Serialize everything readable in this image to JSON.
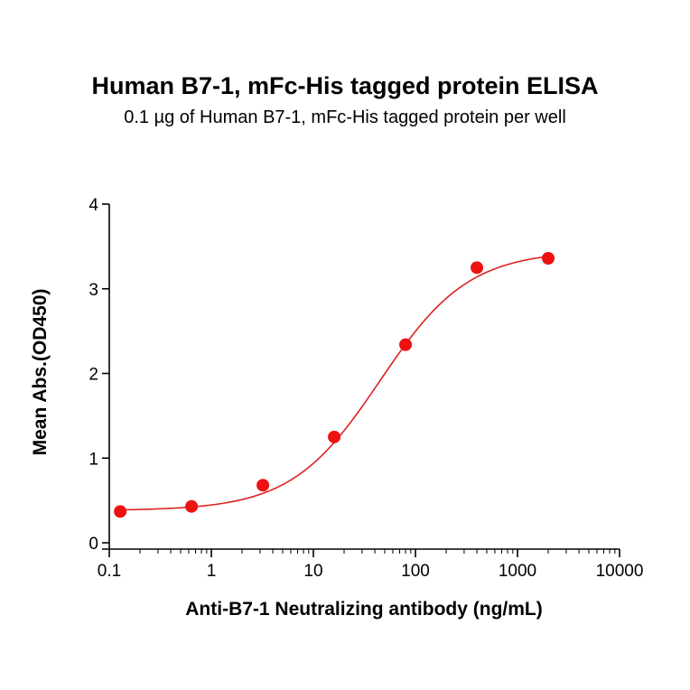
{
  "chart_data": {
    "type": "scatter",
    "title": "Human B7-1, mFc-His tagged protein ELISA",
    "subtitle": "0.1 µg of Human B7-1, mFc-His tagged protein per well",
    "xlabel": "Anti-B7-1 Neutralizing antibody (ng/mL)",
    "ylabel": "Mean Abs.(OD450)",
    "xscale": "log",
    "xlim": [
      0.1,
      10000
    ],
    "ylim": [
      0,
      4
    ],
    "xticks": [
      "0.1",
      "1",
      "10",
      "100",
      "1000",
      "10000"
    ],
    "yticks": [
      "0",
      "1",
      "2",
      "3",
      "4"
    ],
    "points": {
      "x": [
        0.128,
        0.64,
        3.2,
        16,
        80,
        400,
        2000
      ],
      "y": [
        0.37,
        0.43,
        0.68,
        1.25,
        2.34,
        3.25,
        3.36
      ]
    },
    "fit": {
      "model": "4PL",
      "bottom": 0.38,
      "top": 3.45,
      "ec50": 45,
      "hill": 1.0
    },
    "colors": {
      "points": "#ee1111",
      "fit": "#dd2222",
      "axes": "#000000"
    },
    "grid": false,
    "legend": "none"
  }
}
